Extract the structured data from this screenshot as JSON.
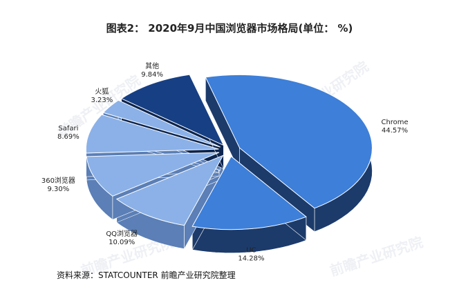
{
  "chart_data": {
    "type": "pie",
    "title": "图表2： 2020年9月中国浏览器市场格局(单位： %)",
    "categories": [
      "Chrome",
      "UC",
      "QQ浏览器",
      "360浏览器",
      "Safari",
      "火狐",
      "其他"
    ],
    "values": [
      44.57,
      14.28,
      10.09,
      9.3,
      8.69,
      3.23,
      9.84
    ],
    "value_labels": [
      "44.57%",
      "14.28%",
      "10.09%",
      "9.30%",
      "8.69%",
      "3.23%",
      "9.84%"
    ],
    "exploded": true,
    "style": "3d"
  },
  "source": "资料来源：STATCOUNTER 前瞻产业研究院整理",
  "watermark": "前瞻产业研究院",
  "colors": {
    "chrome_top": "#3d7fd9",
    "chrome_side": "#1c3b6b",
    "light_top": "#8bb1e8",
    "light_side": "#5b7fb6",
    "other_top": "#173f84",
    "other_side": "#0d254f"
  }
}
